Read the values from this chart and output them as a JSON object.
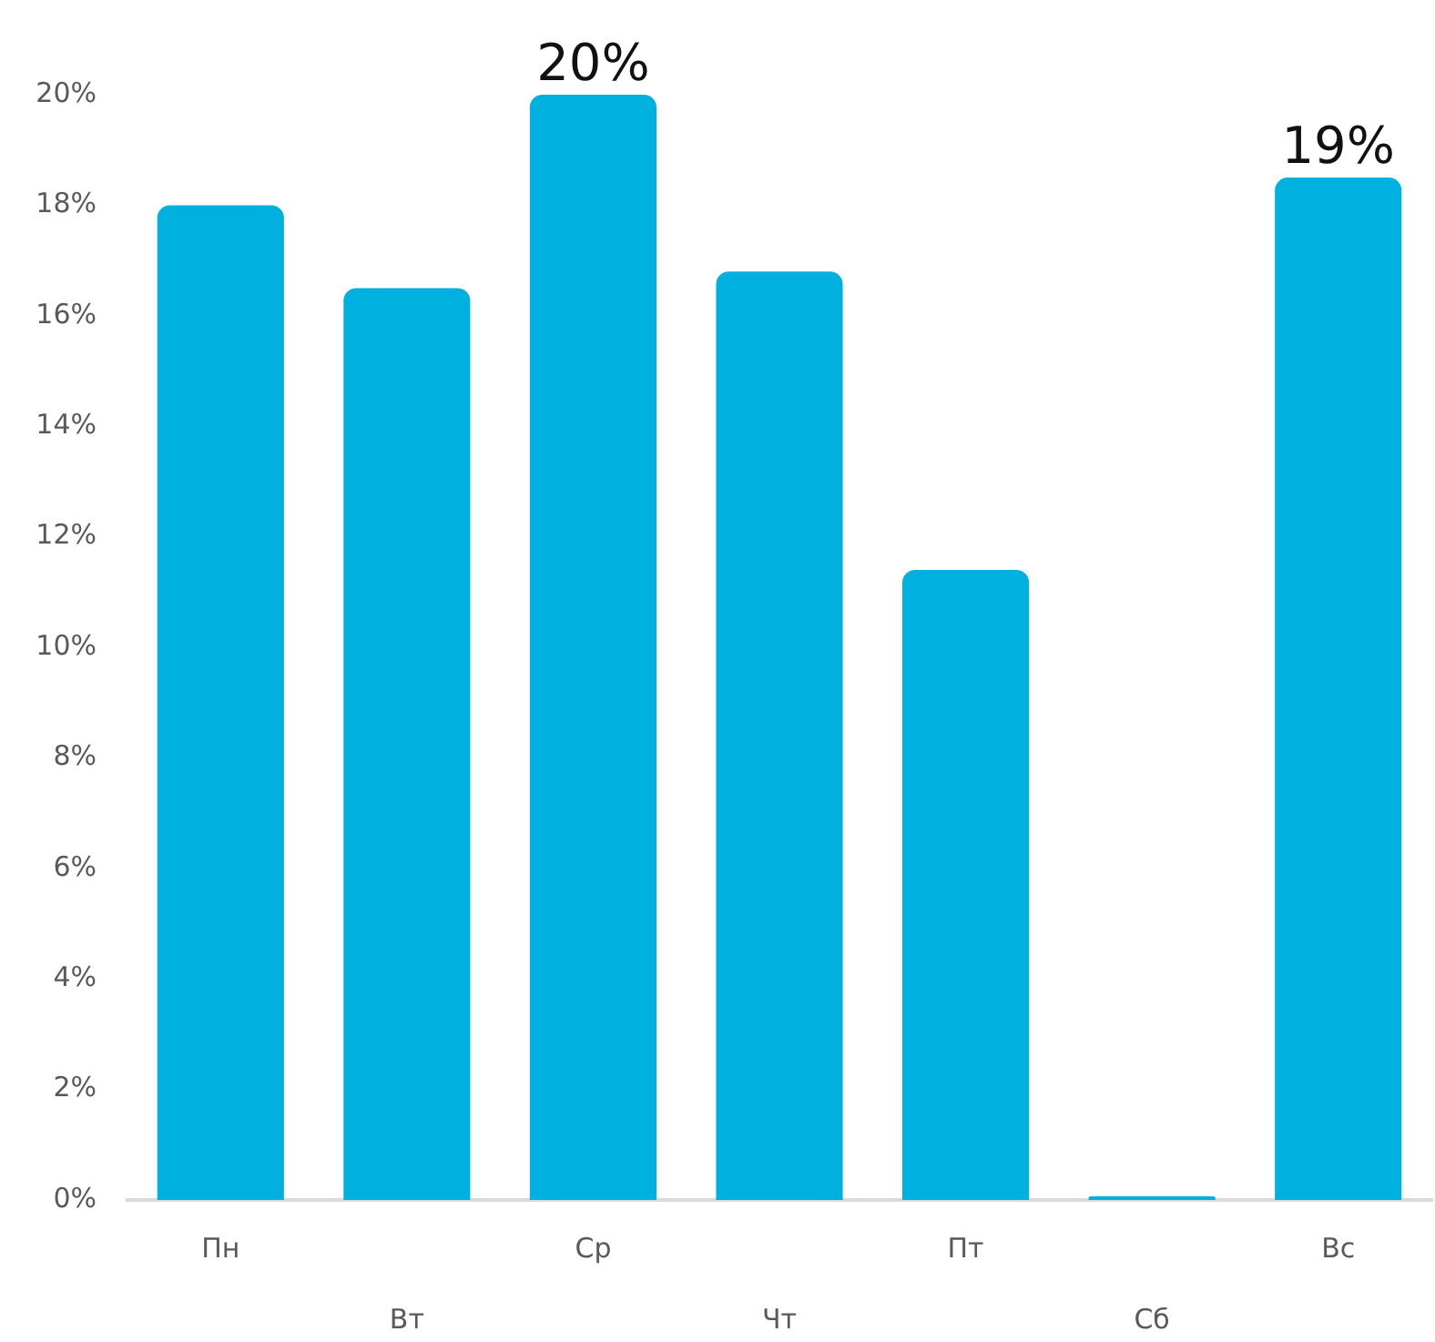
{
  "chart_data": {
    "type": "bar",
    "categories": [
      "Пн",
      "Вт",
      "Ср",
      "Чт",
      "Пт",
      "Сб",
      "Вс"
    ],
    "values": [
      18,
      16.5,
      20,
      16.8,
      11.4,
      0,
      18.5
    ],
    "value_labels": [
      null,
      null,
      "20%",
      null,
      null,
      null,
      "19%"
    ],
    "color": "#00b0de",
    "ylim": [
      0,
      20
    ],
    "yticks": [
      {
        "value": 0,
        "label": "0%"
      },
      {
        "value": 2,
        "label": "2%"
      },
      {
        "value": 4,
        "label": "4%"
      },
      {
        "value": 6,
        "label": "6%"
      },
      {
        "value": 8,
        "label": "8%"
      },
      {
        "value": 10,
        "label": "10%"
      },
      {
        "value": 12,
        "label": "12%"
      },
      {
        "value": 14,
        "label": "14%"
      },
      {
        "value": 16,
        "label": "16%"
      },
      {
        "value": 18,
        "label": "18%"
      },
      {
        "value": 20,
        "label": "20%"
      }
    ],
    "grid": false,
    "legend": false
  }
}
